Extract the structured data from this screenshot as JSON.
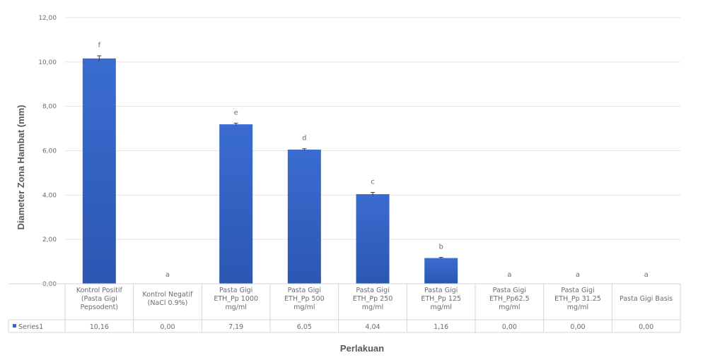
{
  "chart_data": {
    "type": "bar",
    "title": "",
    "xlabel": "Perlakuan",
    "ylabel": "Diameter Zona Hambat (mm)",
    "ylim": [
      0,
      12
    ],
    "yticks": [
      "0,00",
      "2,00",
      "4,00",
      "6,00",
      "8,00",
      "10,00",
      "12,00"
    ],
    "grid": true,
    "categories": [
      [
        "Kontrol Positif",
        "(Pasta Gigi",
        "Pepsodent)"
      ],
      [
        "Kontrol Negatif",
        "(NaCl 0.9%)"
      ],
      [
        "Pasta Gigi",
        "ETH_Pp 1000",
        "mg/ml"
      ],
      [
        "Pasta Gigi",
        "ETH_Pp 500",
        "mg/ml"
      ],
      [
        "Pasta Gigi",
        "ETH_Pp 250",
        "mg/ml"
      ],
      [
        "Pasta Gigi",
        "ETH_Pp 125",
        "mg/ml"
      ],
      [
        "Pasta Gigi",
        "ETH_Pp62.5",
        "mg/ml"
      ],
      [
        "Pasta Gigi",
        "ETH_Pp 31.25",
        "mg/ml"
      ],
      [
        "Pasta Gigi Basis"
      ]
    ],
    "series": [
      {
        "name": "Series1",
        "values": [
          10.16,
          0.0,
          7.19,
          6.05,
          4.04,
          1.16,
          0.0,
          0.0,
          0.0
        ],
        "value_labels": [
          "10,16",
          "0,00",
          "7,19",
          "6,05",
          "4,04",
          "1,16",
          "0,00",
          "0,00",
          "0,00"
        ],
        "errors": [
          0.12,
          0,
          0.05,
          0.04,
          0.08,
          0.03,
          0,
          0,
          0
        ],
        "color": "#3766c8"
      }
    ],
    "significance_letters": [
      "f",
      "a",
      "e",
      "d",
      "c",
      "b",
      "a",
      "a",
      "a"
    ],
    "data_table": true
  }
}
